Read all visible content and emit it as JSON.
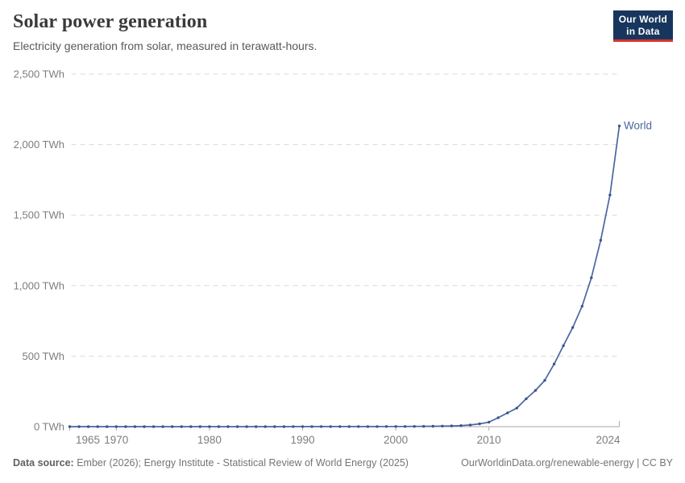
{
  "header": {
    "title": "Solar power generation",
    "subtitle": "Electricity generation from solar, measured in terawatt-hours."
  },
  "logo": {
    "line1": "Our World",
    "line2": "in Data",
    "bg_color": "#18365D",
    "accent_color": "#D7352B"
  },
  "chart_data": {
    "type": "line",
    "title": "Solar power generation",
    "subtitle": "Electricity generation from solar, measured in terawatt-hours.",
    "unit": "TWh",
    "xlim": [
      1965,
      2024
    ],
    "ylim": [
      0,
      2500
    ],
    "grid": true,
    "legend_position": "end-of-line",
    "x": [
      1965,
      1966,
      1967,
      1968,
      1969,
      1970,
      1971,
      1972,
      1973,
      1974,
      1975,
      1976,
      1977,
      1978,
      1979,
      1980,
      1981,
      1982,
      1983,
      1984,
      1985,
      1986,
      1987,
      1988,
      1989,
      1990,
      1991,
      1992,
      1993,
      1994,
      1995,
      1996,
      1997,
      1998,
      1999,
      2000,
      2001,
      2002,
      2003,
      2004,
      2005,
      2006,
      2007,
      2008,
      2009,
      2010,
      2011,
      2012,
      2013,
      2014,
      2015,
      2016,
      2017,
      2018,
      2019,
      2020,
      2021,
      2022,
      2023,
      2024
    ],
    "series": [
      {
        "name": "World",
        "end_label": "World",
        "values": [
          0,
          0,
          0,
          0,
          0,
          0,
          0,
          0,
          0,
          0,
          0,
          0,
          0,
          0,
          0,
          0,
          0,
          0,
          0.01,
          0.01,
          0.01,
          0.02,
          0.02,
          0.03,
          0.3,
          0.4,
          0.5,
          0.5,
          0.6,
          0.6,
          0.6,
          0.7,
          0.7,
          0.8,
          0.9,
          1.1,
          1.4,
          1.7,
          2.1,
          2.8,
          3.9,
          5.4,
          7.4,
          12.1,
          20.1,
          32.2,
          63.6,
          97.4,
          132.0,
          197.7,
          256.8,
          328.0,
          444.0,
          574.2,
          703.1,
          853.7,
          1055.2,
          1321.8,
          1642.5,
          2131.7
        ]
      }
    ],
    "yticks": [
      {
        "value": 0,
        "label": "0 TWh"
      },
      {
        "value": 500,
        "label": "500 TWh"
      },
      {
        "value": 1000,
        "label": "1,000 TWh"
      },
      {
        "value": 1500,
        "label": "1,500 TWh"
      },
      {
        "value": 2000,
        "label": "2,000 TWh"
      },
      {
        "value": 2500,
        "label": "2,500 TWh"
      }
    ],
    "xticks": [
      {
        "value": 1965,
        "label": "1965"
      },
      {
        "value": 1970,
        "label": "1970"
      },
      {
        "value": 1980,
        "label": "1980"
      },
      {
        "value": 1990,
        "label": "1990"
      },
      {
        "value": 2000,
        "label": "2000"
      },
      {
        "value": 2010,
        "label": "2010"
      },
      {
        "value": 2024,
        "label": "2024"
      }
    ],
    "colors": {
      "line": "#4A66A0",
      "point": "#3A5591",
      "end_label": "#4A66A0",
      "grid": "#DADADA",
      "axis": "#A5A5A5",
      "tick": "#ADADAD",
      "tick_label": "#7D7D7D"
    }
  },
  "footer": {
    "source_label": "Data source:",
    "source_text": " Ember (2026); Energy Institute - Statistical Review of World Energy (2025)",
    "credit_text": "OurWorldinData.org/renewable-energy | CC BY"
  }
}
